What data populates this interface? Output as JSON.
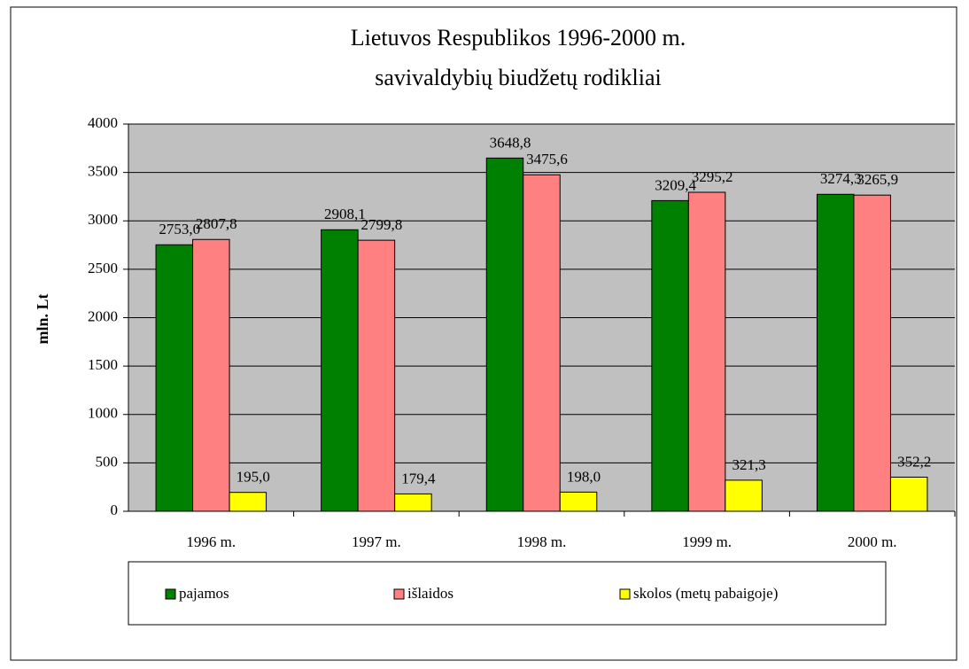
{
  "chart_data": {
    "type": "bar",
    "title": [
      "Lietuvos Respublikos 1996-2000 m.",
      "savivaldybių biudžetų rodikliai"
    ],
    "y_label": "mln. Lt",
    "categories": [
      "1996 m.",
      "1997 m.",
      "1998 m.",
      "1999 m.",
      "2000 m."
    ],
    "series": [
      {
        "name": "pajamos",
        "color": "#008000",
        "values": [
          2753.0,
          2908.1,
          3648.8,
          3209.4,
          3274.3
        ],
        "value_labels": [
          "2753,0",
          "2908,1",
          "3648,8",
          "3209,4",
          "3274,3"
        ]
      },
      {
        "name": "išlaidos",
        "color": "#ff8080",
        "values": [
          2807.8,
          2799.8,
          3475.6,
          3295.2,
          3265.9
        ],
        "value_labels": [
          "2807,8",
          "2799,8",
          "3475,6",
          "3295,2",
          "3265,9"
        ]
      },
      {
        "name": "skolos (metų pabaigoje)",
        "color": "#ffff00",
        "values": [
          195.0,
          179.4,
          198.0,
          321.3,
          352.2
        ],
        "value_labels": [
          "195,0",
          "179,4",
          "198,0",
          "321,3",
          "352,2"
        ]
      }
    ],
    "ylim": [
      0,
      4000
    ],
    "yticks": [
      0,
      500,
      1000,
      1500,
      2000,
      2500,
      3000,
      3500,
      4000
    ],
    "grid": true,
    "legend": "bottom"
  }
}
